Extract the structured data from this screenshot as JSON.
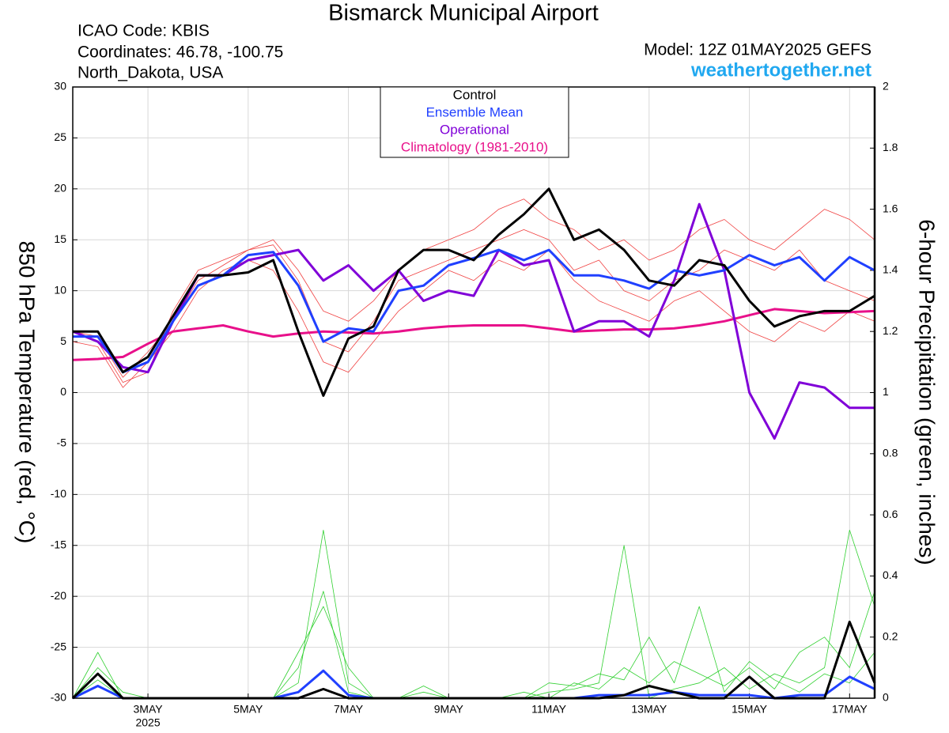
{
  "chart_data": {
    "type": "line",
    "title": "Bismarck Municipal Airport",
    "info_left": [
      "ICAO Code: KBIS",
      "Coordinates: 46.78, -100.75",
      "North_Dakota, USA"
    ],
    "model": "Model: 12Z 01MAY2025 GEFS",
    "site": "weathertogether.net",
    "y_label": "850 hPa Temperature (red, °C)",
    "y2_label": "6-hour Precipitation (green, inches)",
    "x_year": "2025",
    "x": [
      0,
      12,
      24,
      36,
      48,
      60,
      72,
      84,
      96,
      108,
      120,
      132,
      144,
      156,
      168,
      180,
      192,
      204,
      216,
      228,
      240,
      252,
      264,
      276,
      288,
      300,
      312,
      324,
      336,
      348,
      360,
      372,
      384
    ],
    "xlim": [
      0,
      384
    ],
    "xticks": [
      {
        "value": 36,
        "label": "3MAY"
      },
      {
        "value": 84,
        "label": "5MAY"
      },
      {
        "value": 132,
        "label": "7MAY"
      },
      {
        "value": 180,
        "label": "9MAY"
      },
      {
        "value": 228,
        "label": "11MAY"
      },
      {
        "value": 276,
        "label": "13MAY"
      },
      {
        "value": 324,
        "label": "15MAY"
      },
      {
        "value": 372,
        "label": "17MAY"
      }
    ],
    "ylim": [
      -30,
      30
    ],
    "yticks": [
      -30,
      -25,
      -20,
      -15,
      -10,
      -5,
      0,
      5,
      10,
      15,
      20,
      25,
      30
    ],
    "y2lim": [
      0,
      2
    ],
    "y2ticks": [
      0,
      0.2,
      0.4,
      0.6,
      0.8,
      1,
      1.2,
      1.4,
      1.6,
      1.8,
      2
    ],
    "grid": true,
    "legend": "top",
    "series": [
      {
        "color": "#f04040",
        "width": 0.8,
        "values": [
          6,
          5,
          1,
          2,
          8,
          12,
          13,
          14,
          15,
          12,
          8,
          7,
          9,
          12,
          14,
          15,
          16,
          18,
          19,
          17,
          16,
          14,
          15,
          13,
          14,
          16,
          17,
          15,
          14,
          16,
          18,
          17,
          15
        ]
      },
      {
        "color": "#f04040",
        "width": 0.8,
        "values": [
          5,
          4.5,
          0.5,
          3,
          6,
          10,
          12,
          13,
          12,
          8,
          3,
          2,
          5,
          8,
          10,
          12,
          11,
          13,
          12,
          14,
          11,
          9,
          8,
          7,
          9,
          10,
          8,
          6,
          5,
          7,
          6,
          8,
          7
        ]
      },
      {
        "color": "#f04040",
        "width": 0.8,
        "values": [
          6,
          5.5,
          1.5,
          4,
          7,
          11,
          12.5,
          14,
          14.5,
          11,
          5,
          4,
          7,
          11,
          12,
          13,
          14,
          15,
          16,
          15,
          12,
          13,
          10,
          9,
          11,
          12,
          14,
          13,
          12,
          14,
          11,
          10,
          9
        ]
      },
      {
        "color": "#30d030",
        "width": 0.8,
        "axis": "y2",
        "values": [
          0,
          0.15,
          0,
          0,
          0,
          0,
          0,
          0,
          0,
          0.05,
          0.55,
          0.05,
          0,
          0,
          0.04,
          0,
          0,
          0,
          0,
          0.02,
          0.03,
          0.05,
          0.5,
          0,
          0.03,
          0.05,
          0.1,
          0.03,
          0.08,
          0.05,
          0.1,
          0.55,
          0.3
        ]
      },
      {
        "color": "#30d030",
        "width": 0.8,
        "axis": "y2",
        "values": [
          0,
          0.06,
          0,
          0,
          0,
          0,
          0,
          0,
          0,
          0.1,
          0.35,
          0.02,
          0,
          0,
          0,
          0,
          0,
          0,
          0.02,
          0,
          0.05,
          0.03,
          0.1,
          0.05,
          0.12,
          0.08,
          0.04,
          0.1,
          0.03,
          0.15,
          0.2,
          0.1,
          0.35
        ]
      },
      {
        "color": "#30d030",
        "width": 0.8,
        "axis": "y2",
        "values": [
          0,
          0.1,
          0.02,
          0,
          0,
          0,
          0,
          0,
          0,
          0.15,
          0.3,
          0.1,
          0,
          0,
          0.02,
          0,
          0,
          0,
          0,
          0.05,
          0.04,
          0.08,
          0.06,
          0.2,
          0.05,
          0.3,
          0.02,
          0.12,
          0.06,
          0.02,
          0.08,
          0.05,
          0.15
        ]
      },
      {
        "color": "#2040ff",
        "width": 3,
        "axis": "y2",
        "values": [
          0,
          0.04,
          0,
          0,
          0,
          0,
          0,
          0,
          0,
          0.02,
          0.09,
          0.01,
          0,
          0,
          0,
          0,
          0,
          0,
          0,
          0,
          0,
          0.01,
          0.01,
          0.01,
          0.02,
          0.01,
          0.01,
          0.01,
          0,
          0.01,
          0.01,
          0.07,
          0.03
        ]
      },
      {
        "color": "#000000",
        "width": 3,
        "axis": "y2",
        "values": [
          0,
          0.08,
          0,
          0,
          0,
          0,
          0,
          0,
          0,
          0,
          0.03,
          0,
          0,
          0,
          0,
          0,
          0,
          0,
          0,
          0,
          0,
          0,
          0.01,
          0.04,
          0.02,
          0,
          0,
          0.07,
          0,
          0,
          0,
          0.25,
          0.05
        ]
      },
      {
        "name": "Climatology (1981-2010)",
        "color": "#e8108a",
        "width": 3,
        "values": [
          3.2,
          3.3,
          3.5,
          4.8,
          6,
          6.3,
          6.6,
          6,
          5.5,
          5.8,
          6,
          5.9,
          5.8,
          6,
          6.3,
          6.5,
          6.6,
          6.6,
          6.6,
          6.3,
          6,
          6.1,
          6.2,
          6.2,
          6.3,
          6.6,
          7,
          7.6,
          8.2,
          8,
          7.8,
          7.9,
          8
        ]
      },
      {
        "name": "Operational",
        "color": "#8000d8",
        "width": 3,
        "values": [
          6,
          5,
          2.5,
          2,
          7,
          11.5,
          11.5,
          13,
          13.5,
          14,
          11,
          12.5,
          10,
          12,
          9,
          10,
          9.5,
          14,
          12.5,
          13,
          6,
          7,
          7,
          5.5,
          11,
          18.5,
          12,
          0,
          -4.5,
          1,
          0.5,
          -1.5,
          -1.5
        ]
      },
      {
        "name": "Ensemble Mean",
        "color": "#2040ff",
        "width": 3,
        "values": [
          5.5,
          5.5,
          2,
          3,
          7,
          10.5,
          11.5,
          13.5,
          13.8,
          10.5,
          5,
          6.3,
          6,
          10,
          10.5,
          12.5,
          13.2,
          14,
          13,
          14,
          11.5,
          11.5,
          11,
          10.2,
          12,
          11.5,
          12,
          13.5,
          12.5,
          13.3,
          11,
          13.3,
          12
        ]
      },
      {
        "name": "Control",
        "color": "#000000",
        "width": 3,
        "values": [
          6,
          6,
          2,
          3.5,
          7.5,
          11.5,
          11.5,
          11.8,
          13,
          6,
          -0.3,
          5.3,
          6.5,
          12,
          14,
          14,
          13,
          15.5,
          17.5,
          20,
          15,
          16,
          14,
          11,
          10.5,
          13,
          12.5,
          9,
          6.5,
          7.5,
          8,
          8,
          9.5
        ]
      }
    ]
  }
}
